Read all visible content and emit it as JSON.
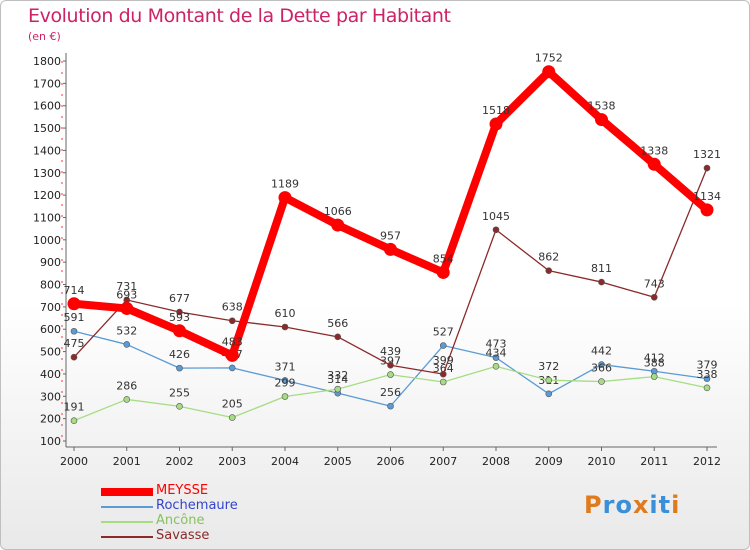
{
  "header": {
    "title": "Evolution du Montant de la Dette par Habitant",
    "subtitle": "(en €)"
  },
  "logo": {
    "text": "Proxiti",
    "colors": [
      "#e07a1f",
      "#3a8fd8",
      "#3a8fd8",
      "#e07a1f",
      "#3a8fd8",
      "#3a8fd8",
      "#e07a1f"
    ]
  },
  "chart_data": {
    "type": "line",
    "categories": [
      "2000",
      "2001",
      "2002",
      "2003",
      "2004",
      "2005",
      "2006",
      "2007",
      "2008",
      "2009",
      "2010",
      "2011",
      "2012"
    ],
    "ylim": [
      100,
      1800
    ],
    "yticks": [
      100,
      200,
      300,
      400,
      500,
      600,
      700,
      800,
      900,
      1000,
      1100,
      1200,
      1300,
      1400,
      1500,
      1600,
      1700,
      1800
    ],
    "grid": false,
    "legend_position": "bottom-left",
    "series": [
      {
        "name": "MEYSSE",
        "color": "#ff0000",
        "emphasis": true,
        "values": [
          714,
          693,
          593,
          483,
          1189,
          1066,
          957,
          854,
          1518,
          1752,
          1538,
          1338,
          1134
        ]
      },
      {
        "name": "Rochemaure",
        "color": "#5b9bd5",
        "values": [
          591,
          532,
          426,
          427,
          371,
          314,
          256,
          527,
          473,
          311,
          442,
          412,
          379
        ]
      },
      {
        "name": "Ancône",
        "color": "#a6dd82",
        "values": [
          191,
          286,
          255,
          205,
          299,
          332,
          397,
          364,
          434,
          372,
          366,
          388,
          338
        ]
      },
      {
        "name": "Savasse",
        "color": "#8b2a2a",
        "values": [
          475,
          731,
          677,
          638,
          610,
          566,
          439,
          399,
          null,
          862,
          811,
          743,
          1321
        ]
      }
    ],
    "note_2008_savasse": 1045,
    "data_labels": true
  }
}
